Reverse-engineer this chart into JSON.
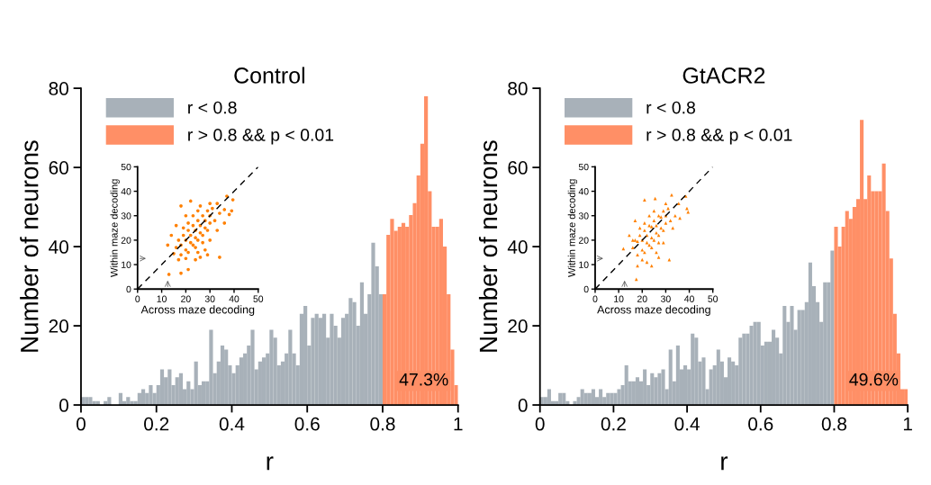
{
  "chart_data": [
    {
      "type": "histogram",
      "title": "Control",
      "xlabel": "r",
      "ylabel": "Number of neurons",
      "xlim": [
        0,
        1
      ],
      "ylim": [
        0,
        80
      ],
      "xticks": [
        0,
        0.2,
        0.4,
        0.6,
        0.8,
        1
      ],
      "yticks": [
        0,
        20,
        40,
        60,
        80
      ],
      "grid": false,
      "legend": "top left",
      "annotations": [
        "47.3%"
      ],
      "bins": [
        0,
        0.01,
        0.02,
        0.03,
        0.04,
        0.05,
        0.06,
        0.07,
        0.08,
        0.09,
        0.1,
        0.11,
        0.12,
        0.13,
        0.14,
        0.15,
        0.16,
        0.17,
        0.18,
        0.19,
        0.2,
        0.21,
        0.22,
        0.23,
        0.24,
        0.25,
        0.26,
        0.27,
        0.28,
        0.29,
        0.3,
        0.31,
        0.32,
        0.33,
        0.34,
        0.35,
        0.36,
        0.37,
        0.38,
        0.39,
        0.4,
        0.41,
        0.42,
        0.43,
        0.44,
        0.45,
        0.46,
        0.47,
        0.48,
        0.49,
        0.5,
        0.51,
        0.52,
        0.53,
        0.54,
        0.55,
        0.56,
        0.57,
        0.58,
        0.59,
        0.6,
        0.61,
        0.62,
        0.63,
        0.64,
        0.65,
        0.66,
        0.67,
        0.68,
        0.69,
        0.7,
        0.71,
        0.72,
        0.73,
        0.74,
        0.75,
        0.76,
        0.77,
        0.78,
        0.79,
        0.8,
        0.81,
        0.82,
        0.83,
        0.84,
        0.85,
        0.86,
        0.87,
        0.88,
        0.89,
        0.9,
        0.91,
        0.92,
        0.93,
        0.94,
        0.95,
        0.96,
        0.97,
        0.98,
        0.99,
        1
      ],
      "series": [
        {
          "name": "r < 0.8",
          "color": "#a8b1b9",
          "values": [
            2,
            2,
            2,
            1,
            1,
            0,
            1,
            2,
            0,
            0,
            3,
            1,
            2,
            1,
            1,
            3,
            4,
            3,
            5,
            3,
            5,
            9,
            7,
            9,
            5,
            7,
            8,
            4,
            6,
            4,
            11,
            5,
            6,
            6,
            19,
            8,
            11,
            15,
            14,
            10,
            8,
            10,
            12,
            13,
            15,
            19,
            9,
            11,
            12,
            13,
            19,
            17,
            10,
            11,
            13,
            19,
            13,
            10,
            23,
            25,
            15,
            22,
            23,
            22,
            23,
            17,
            23,
            20,
            17,
            22,
            23,
            27,
            26,
            20,
            31,
            23,
            28,
            41,
            35,
            28,
            null,
            null,
            null,
            null,
            null,
            null,
            null,
            null,
            null,
            null,
            null,
            null,
            null,
            null,
            null,
            null,
            null,
            null,
            null,
            null
          ]
        },
        {
          "name": "r > 0.8 && p < 0.01",
          "color": "#ff8f66",
          "values": [
            null,
            null,
            null,
            null,
            null,
            null,
            null,
            null,
            null,
            null,
            null,
            null,
            null,
            null,
            null,
            null,
            null,
            null,
            null,
            null,
            null,
            null,
            null,
            null,
            null,
            null,
            null,
            null,
            null,
            null,
            null,
            null,
            null,
            null,
            null,
            null,
            null,
            null,
            null,
            null,
            null,
            null,
            null,
            null,
            null,
            null,
            null,
            null,
            null,
            null,
            null,
            null,
            null,
            null,
            null,
            null,
            null,
            null,
            null,
            null,
            null,
            null,
            null,
            null,
            null,
            null,
            null,
            null,
            null,
            null,
            null,
            null,
            null,
            null,
            null,
            null,
            null,
            null,
            null,
            null,
            28,
            43,
            47,
            44,
            45,
            46,
            45,
            48,
            51,
            58,
            66,
            78,
            54,
            45,
            45,
            47,
            40,
            28,
            14,
            5
          ]
        }
      ]
    },
    {
      "type": "scatter",
      "xlabel": "Across maze decoding",
      "ylabel": "Within maze decoding",
      "xlim": [
        0,
        50
      ],
      "ylim": [
        0,
        50
      ],
      "xticks": [
        0,
        10,
        20,
        30,
        40,
        50
      ],
      "yticks": [
        0,
        10,
        20,
        30,
        40,
        50
      ],
      "grid": false,
      "marker": "circle",
      "series": [
        {
          "color": "#ff8000",
          "x": [
            13,
            18,
            21,
            12.5,
            34,
            29,
            37,
            39.5,
            39,
            38,
            36,
            36,
            22,
            18,
            15,
            17,
            24,
            26,
            14,
            16,
            20,
            26,
            30,
            33,
            34,
            33,
            30,
            28,
            25,
            20,
            18,
            20,
            22,
            24,
            26,
            28,
            30,
            19,
            21,
            23,
            25,
            27,
            22,
            24,
            26,
            28,
            30,
            20,
            23,
            25,
            27,
            29,
            17,
            19,
            21,
            23,
            25,
            31,
            32,
            29,
            16,
            18,
            21,
            24,
            27
          ],
          "values": [
            6,
            6.5,
            8,
            18,
            13,
            14,
            38,
            36.5,
            32,
            30.5,
            27,
            32.5,
            36,
            34,
            14.5,
            12,
            12,
            13,
            22,
            26,
            30,
            34,
            35,
            35,
            31,
            24,
            20,
            16,
            15,
            12.5,
            18,
            20,
            22,
            24,
            26,
            28,
            30,
            22,
            24,
            26,
            28,
            30,
            19,
            21,
            23,
            25,
            27,
            16,
            18,
            20,
            22,
            24,
            20,
            25,
            27,
            30,
            32,
            33,
            28,
            32,
            17,
            14,
            15,
            17,
            19
          ]
        },
        {
          "type": "line",
          "color": "#000000",
          "line_style": "dashed",
          "marker": "none",
          "x": [
            0,
            50
          ],
          "values": [
            0,
            50
          ]
        }
      ]
    },
    {
      "type": "histogram",
      "title": "GtACR2",
      "xlabel": "r",
      "ylabel": "Number of neurons",
      "xlim": [
        0,
        1
      ],
      "ylim": [
        0,
        80
      ],
      "xticks": [
        0,
        0.2,
        0.4,
        0.6,
        0.8,
        1
      ],
      "yticks": [
        0,
        20,
        40,
        60,
        80
      ],
      "grid": false,
      "legend": "top left",
      "annotations": [
        "49.6%"
      ],
      "bins": [
        0,
        0.01,
        0.02,
        0.03,
        0.04,
        0.05,
        0.06,
        0.07,
        0.08,
        0.09,
        0.1,
        0.11,
        0.12,
        0.13,
        0.14,
        0.15,
        0.16,
        0.17,
        0.18,
        0.19,
        0.2,
        0.21,
        0.22,
        0.23,
        0.24,
        0.25,
        0.26,
        0.27,
        0.28,
        0.29,
        0.3,
        0.31,
        0.32,
        0.33,
        0.34,
        0.35,
        0.36,
        0.37,
        0.38,
        0.39,
        0.4,
        0.41,
        0.42,
        0.43,
        0.44,
        0.45,
        0.46,
        0.47,
        0.48,
        0.49,
        0.5,
        0.51,
        0.52,
        0.53,
        0.54,
        0.55,
        0.56,
        0.57,
        0.58,
        0.59,
        0.6,
        0.61,
        0.62,
        0.63,
        0.64,
        0.65,
        0.66,
        0.67,
        0.68,
        0.69,
        0.7,
        0.71,
        0.72,
        0.73,
        0.74,
        0.75,
        0.76,
        0.77,
        0.78,
        0.79,
        0.8,
        0.81,
        0.82,
        0.83,
        0.84,
        0.85,
        0.86,
        0.87,
        0.88,
        0.89,
        0.9,
        0.91,
        0.92,
        0.93,
        0.94,
        0.95,
        0.96,
        0.97,
        0.98,
        0.99,
        1
      ],
      "series": [
        {
          "name": "r < 0.8",
          "color": "#a8b1b9",
          "values": [
            2,
            2,
            4,
            1,
            1,
            3,
            3,
            1,
            0,
            1,
            2,
            4,
            3,
            3,
            4,
            2,
            4,
            2,
            3,
            3,
            3,
            4,
            5,
            10,
            6,
            6,
            7,
            6,
            9,
            5,
            8,
            7,
            8,
            9,
            4,
            14,
            6,
            15,
            9,
            10,
            9,
            18,
            17,
            11,
            12,
            4,
            9,
            10,
            14,
            11,
            7,
            12,
            11,
            10,
            17,
            18,
            18,
            20,
            21,
            21,
            15,
            16,
            16,
            19,
            17,
            13,
            25,
            21,
            25,
            19,
            24,
            24,
            26,
            36,
            30,
            26,
            21,
            31,
            31,
            39,
            null,
            null,
            null,
            null,
            null,
            null,
            null,
            null,
            null,
            null,
            null,
            null,
            null,
            null,
            null,
            null,
            null,
            null,
            null,
            null
          ]
        },
        {
          "name": "r > 0.8 && p < 0.01",
          "color": "#ff8f66",
          "values": [
            null,
            null,
            null,
            null,
            null,
            null,
            null,
            null,
            null,
            null,
            null,
            null,
            null,
            null,
            null,
            null,
            null,
            null,
            null,
            null,
            null,
            null,
            null,
            null,
            null,
            null,
            null,
            null,
            null,
            null,
            null,
            null,
            null,
            null,
            null,
            null,
            null,
            null,
            null,
            null,
            null,
            null,
            null,
            null,
            null,
            null,
            null,
            null,
            null,
            null,
            null,
            null,
            null,
            null,
            null,
            null,
            null,
            null,
            null,
            null,
            null,
            null,
            null,
            null,
            null,
            null,
            null,
            null,
            null,
            null,
            null,
            null,
            null,
            null,
            null,
            null,
            null,
            null,
            null,
            null,
            45,
            40,
            45,
            49,
            47,
            50,
            52,
            72,
            52,
            58,
            54,
            54,
            54,
            61,
            49,
            37,
            23,
            13,
            4,
            4
          ]
        }
      ]
    },
    {
      "type": "scatter",
      "xlabel": "Across maze decoding",
      "ylabel": "Within maze decoding",
      "xlim": [
        0,
        50
      ],
      "ylim": [
        0,
        50
      ],
      "xticks": [
        0,
        10,
        20,
        30,
        40,
        50
      ],
      "yticks": [
        0,
        10,
        20,
        30,
        40,
        50
      ],
      "grid": false,
      "marker": "triangle",
      "series": [
        {
          "color": "#ff8000",
          "x": [
            17.5,
            12,
            24,
            31.5,
            18,
            27,
            21,
            25.5,
            32.5,
            38.5,
            39.5,
            39,
            36,
            35.5,
            16,
            14.5,
            17,
            30,
            34,
            33,
            29,
            26,
            20,
            22,
            18,
            20,
            22,
            24,
            26,
            28,
            30,
            19,
            21,
            23,
            25,
            27,
            22,
            24,
            26,
            28,
            30,
            20,
            23,
            25,
            27,
            29,
            17,
            19,
            21,
            23,
            25,
            31,
            32,
            29,
            16,
            18,
            21,
            24,
            27
          ],
          "values": [
            4,
            16.5,
            9.5,
            12,
            9.5,
            13,
            36.5,
            37,
            38.5,
            38,
            31.5,
            33,
            29,
            35,
            20,
            22,
            28,
            35,
            30,
            25,
            19,
            15,
            12,
            11,
            19.5,
            20,
            22,
            25.5,
            26,
            29.5,
            30,
            22,
            24,
            26,
            28,
            30,
            19,
            21,
            23,
            25,
            27,
            16,
            18,
            20,
            22,
            24,
            20,
            25,
            27,
            30,
            32,
            33,
            28,
            32,
            17,
            14,
            15,
            17,
            19
          ]
        },
        {
          "type": "line",
          "color": "#000000",
          "line_style": "dashed",
          "marker": "none",
          "x": [
            0,
            50
          ],
          "values": [
            0,
            50
          ]
        }
      ]
    }
  ]
}
